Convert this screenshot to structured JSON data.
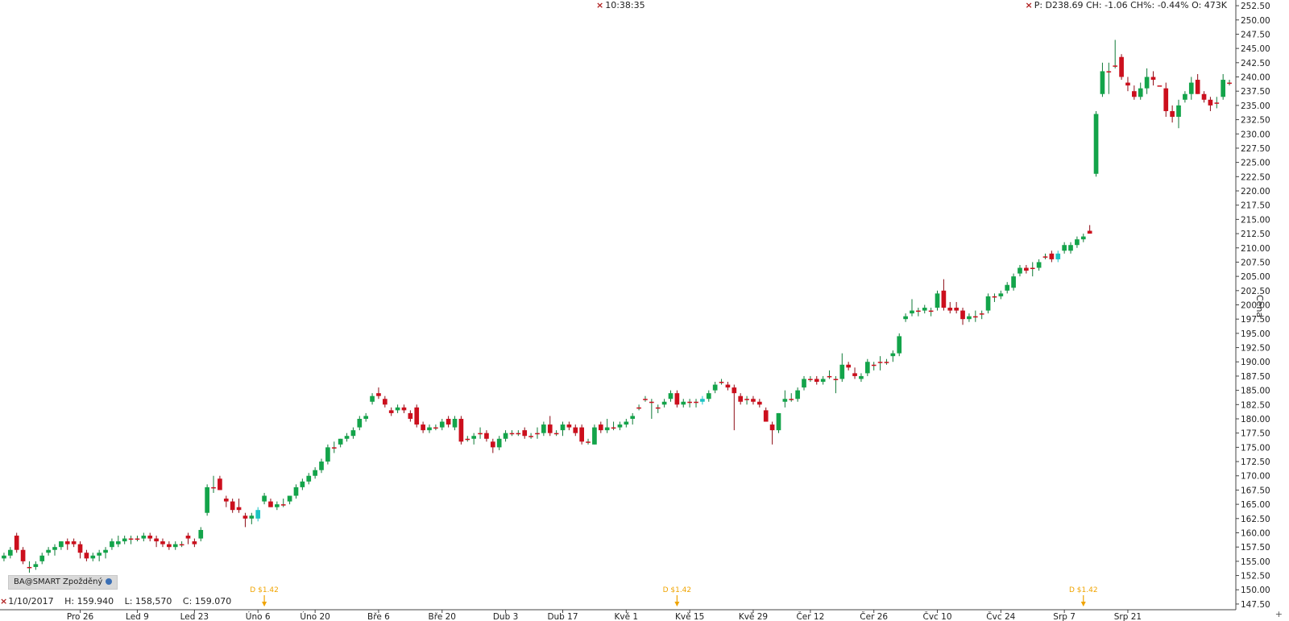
{
  "header": {
    "time": "10:38:35",
    "quote": "P: D238.69 CH: -1.06 CH%: -0.44% O: 473K"
  },
  "hover": {
    "date": "1/10/2017",
    "high": "H: 159.940",
    "low": "L: 158,570",
    "close": "C: 159.070"
  },
  "feed_badge": "BA@SMART Zpožděný",
  "corner_symbol": "+",
  "colors": {
    "up": "#13a44a",
    "down": "#cc0f1d",
    "doji": "#1cc3c3",
    "dividend": "#f0a400"
  },
  "chart_data": {
    "type": "candlestick",
    "ylabel": "Cena",
    "y_axis_side": "right",
    "ylim": [
      146.5,
      253.5
    ],
    "y_ticks": [
      147.5,
      150,
      152.5,
      155,
      157.5,
      160,
      162.5,
      165,
      167.5,
      170,
      172.5,
      175,
      177.5,
      180,
      182.5,
      185,
      187.5,
      190,
      192.5,
      195,
      197.5,
      200,
      202.5,
      205,
      207.5,
      210,
      212.5,
      215,
      217.5,
      220,
      222.5,
      225,
      227.5,
      230,
      232.5,
      235,
      237.5,
      240,
      242.5,
      245,
      247.5,
      250,
      252.5
    ],
    "x_ticks": [
      {
        "label": "Pro 26",
        "i": 12
      },
      {
        "label": "Led 9",
        "i": 21
      },
      {
        "label": "Led 23",
        "i": 30
      },
      {
        "label": "Úno 6",
        "i": 40
      },
      {
        "label": "Úno 20",
        "i": 49
      },
      {
        "label": "Bře 6",
        "i": 59
      },
      {
        "label": "Bře 20",
        "i": 69
      },
      {
        "label": "Dub 3",
        "i": 79
      },
      {
        "label": "Dub 17",
        "i": 88
      },
      {
        "label": "Kvě 1",
        "i": 98
      },
      {
        "label": "Kvě 15",
        "i": 108
      },
      {
        "label": "Kvě 29",
        "i": 118
      },
      {
        "label": "Čer 12",
        "i": 127
      },
      {
        "label": "Čer 26",
        "i": 137
      },
      {
        "label": "Čvc 10",
        "i": 147
      },
      {
        "label": "Čvc 24",
        "i": 157
      },
      {
        "label": "Srp 7",
        "i": 167
      },
      {
        "label": "Srp 21",
        "i": 177
      }
    ],
    "dividends": [
      {
        "label": "D $1.42",
        "i": 41
      },
      {
        "label": "D $1.42",
        "i": 106
      },
      {
        "label": "D $1.42",
        "i": 170
      }
    ],
    "ohlc": [
      [
        155.5,
        156.5,
        155,
        156
      ],
      [
        156,
        157.5,
        155.5,
        157
      ],
      [
        159.5,
        160,
        156.5,
        157
      ],
      [
        157,
        157.5,
        154.5,
        155
      ],
      [
        154,
        155,
        153,
        154
      ],
      [
        154,
        155,
        153.5,
        154.5
      ],
      [
        155,
        156.5,
        154.5,
        156
      ],
      [
        156.5,
        157.5,
        156,
        157
      ],
      [
        157,
        158,
        156,
        157.5
      ],
      [
        157.5,
        158.5,
        157,
        158.5
      ],
      [
        158.5,
        159,
        157,
        158
      ],
      [
        158.5,
        159,
        157.5,
        158
      ],
      [
        158,
        158.5,
        155.5,
        156.5
      ],
      [
        156.5,
        157,
        155,
        155.5
      ],
      [
        155.5,
        156.5,
        155,
        156
      ],
      [
        156,
        157,
        155,
        156.5
      ],
      [
        156.5,
        157.5,
        155.5,
        157
      ],
      [
        157.5,
        159,
        157,
        158.5
      ],
      [
        158,
        159.5,
        157.5,
        158.5
      ],
      [
        158.5,
        159.5,
        158,
        159
      ],
      [
        159,
        159.5,
        158,
        159
      ],
      [
        159,
        159.5,
        158.5,
        159
      ],
      [
        159,
        160,
        158.5,
        159.5
      ],
      [
        159.5,
        160,
        158.5,
        159
      ],
      [
        159,
        159.5,
        157.5,
        158.5
      ],
      [
        158.5,
        159,
        157.5,
        158
      ],
      [
        158,
        158.5,
        157,
        157.5
      ],
      [
        157.5,
        158.5,
        157,
        158
      ],
      [
        158,
        158.5,
        157.5,
        158
      ],
      [
        159.5,
        160,
        158,
        159
      ],
      [
        158.5,
        159,
        157.5,
        158
      ],
      [
        159,
        161,
        158.5,
        160.5
      ],
      [
        163.5,
        168.5,
        163,
        168
      ],
      [
        168,
        170,
        167,
        168
      ],
      [
        169.5,
        170,
        167.5,
        167.5
      ],
      [
        166,
        166.5,
        164.5,
        165.5
      ],
      [
        165.5,
        166,
        163.5,
        164
      ],
      [
        164.5,
        166,
        163.5,
        164
      ],
      [
        163,
        163.5,
        161,
        162.5
      ],
      [
        162.5,
        163.5,
        161.5,
        163
      ],
      [
        162.5,
        164.5,
        162,
        164
      ],
      [
        165.5,
        167,
        165,
        166.5
      ],
      [
        165.5,
        166,
        164.5,
        164.5
      ],
      [
        164.5,
        165.5,
        164,
        165
      ],
      [
        165,
        166,
        164.5,
        165
      ],
      [
        165.5,
        166.5,
        165,
        166.5
      ],
      [
        166.5,
        168.5,
        166,
        168
      ],
      [
        168,
        169.5,
        167.5,
        169
      ],
      [
        169,
        170.5,
        168.5,
        170
      ],
      [
        170,
        171.5,
        169.5,
        171
      ],
      [
        171,
        173,
        170.5,
        172.5
      ],
      [
        172.5,
        175.5,
        172,
        175
      ],
      [
        175,
        176,
        174,
        175
      ],
      [
        175.5,
        176.5,
        175,
        176.5
      ],
      [
        176.5,
        177.5,
        176,
        177
      ],
      [
        177,
        178.5,
        176.5,
        178
      ],
      [
        178.5,
        180.5,
        178,
        180
      ],
      [
        180,
        181,
        179.5,
        180.5
      ],
      [
        183,
        184.5,
        182.5,
        184
      ],
      [
        184.5,
        185.5,
        183.5,
        184
      ],
      [
        183.5,
        184,
        182,
        182.5
      ],
      [
        181.5,
        182,
        180.5,
        181
      ],
      [
        181.5,
        182.5,
        181,
        182
      ],
      [
        182,
        182.5,
        181,
        181.5
      ],
      [
        181,
        181.5,
        179.5,
        180
      ],
      [
        182,
        182.5,
        178.5,
        179
      ],
      [
        179,
        179.5,
        177.5,
        178
      ],
      [
        178,
        179,
        177.5,
        178.5
      ],
      [
        178.5,
        179,
        178,
        178.5
      ],
      [
        178.5,
        180,
        178,
        179.5
      ],
      [
        180,
        180.5,
        178.5,
        179
      ],
      [
        178.5,
        180.5,
        178,
        180
      ],
      [
        180,
        180.5,
        175.5,
        176
      ],
      [
        176.5,
        177,
        176,
        176.5
      ],
      [
        176.5,
        177.5,
        175.5,
        177
      ],
      [
        177.5,
        178.5,
        176.5,
        177.5
      ],
      [
        177.5,
        178,
        176,
        176.5
      ],
      [
        176,
        176.5,
        174,
        175
      ],
      [
        175,
        177,
        174.5,
        176.5
      ],
      [
        176.5,
        178,
        176,
        177.5
      ],
      [
        177.5,
        178,
        177,
        177.5
      ],
      [
        177.5,
        178,
        177,
        177.5
      ],
      [
        178,
        178.5,
        176.5,
        177
      ],
      [
        177,
        177.5,
        176.5,
        177
      ],
      [
        177.5,
        178.5,
        176.5,
        177.5
      ],
      [
        177.5,
        179.5,
        177,
        179
      ],
      [
        179,
        180.5,
        177,
        177.5
      ],
      [
        177.5,
        178,
        177,
        177.5
      ],
      [
        178,
        179.5,
        177,
        179
      ],
      [
        179,
        179.5,
        178,
        178.5
      ],
      [
        178.5,
        179,
        177,
        177.5
      ],
      [
        178.5,
        179,
        175.5,
        176
      ],
      [
        176,
        176.5,
        175.5,
        176
      ],
      [
        175.5,
        179,
        175.5,
        178.5
      ],
      [
        179,
        179.5,
        177.5,
        178
      ],
      [
        178,
        180,
        177.5,
        178.5
      ],
      [
        178.5,
        179.5,
        178,
        178.5
      ],
      [
        178.5,
        179.5,
        178,
        179
      ],
      [
        179,
        180,
        178.5,
        179.5
      ],
      [
        180,
        181,
        179,
        180.5
      ],
      [
        182,
        182.5,
        181.5,
        182
      ],
      [
        183.5,
        184,
        183,
        183.5
      ],
      [
        183,
        183.5,
        180,
        183
      ],
      [
        182,
        182.5,
        181,
        182
      ],
      [
        182.5,
        183.5,
        182,
        183
      ],
      [
        183.5,
        185,
        183,
        184.5
      ],
      [
        184.5,
        185,
        182,
        182.5
      ],
      [
        182.5,
        183.5,
        182,
        183
      ],
      [
        183,
        183.5,
        182,
        183
      ],
      [
        183,
        183.5,
        182,
        183
      ],
      [
        183,
        184,
        182.5,
        183.5
      ],
      [
        183.5,
        185,
        183,
        184.5
      ],
      [
        185,
        186.5,
        184.5,
        186
      ],
      [
        186.5,
        187,
        186,
        186.5
      ],
      [
        186,
        186.5,
        185,
        185.5
      ],
      [
        185.5,
        186,
        178,
        184.5
      ],
      [
        184,
        184.5,
        182.5,
        183
      ],
      [
        183.5,
        184,
        182.5,
        183.5
      ],
      [
        183.5,
        184,
        182.5,
        183
      ],
      [
        183,
        183.5,
        182,
        182.5
      ],
      [
        181.5,
        182,
        179.5,
        179.5
      ],
      [
        179,
        179.5,
        175.5,
        178
      ],
      [
        178,
        181,
        177.5,
        181
      ],
      [
        183,
        185,
        182,
        183.5
      ],
      [
        183.5,
        184.5,
        183,
        183.5
      ],
      [
        183.5,
        185.5,
        183,
        185
      ],
      [
        185.5,
        187.5,
        185,
        187
      ],
      [
        187,
        187.5,
        186.5,
        187
      ],
      [
        187,
        187.5,
        186,
        186.5
      ],
      [
        186.5,
        187.5,
        186,
        187
      ],
      [
        187.5,
        188.5,
        187,
        187.5
      ],
      [
        187,
        187.5,
        184.5,
        187
      ],
      [
        187,
        191.5,
        186.5,
        189.5
      ],
      [
        189.5,
        190,
        188.5,
        189
      ],
      [
        188,
        189,
        187,
        187.5
      ],
      [
        187,
        188,
        186.5,
        187.5
      ],
      [
        188,
        190.5,
        187.5,
        190
      ],
      [
        189.5,
        190,
        188.5,
        189.5
      ],
      [
        190,
        191,
        188.5,
        190
      ],
      [
        190,
        190.5,
        189.5,
        190
      ],
      [
        191,
        192,
        190,
        191.5
      ],
      [
        191.5,
        195,
        191,
        194.5
      ],
      [
        197.5,
        198.5,
        197,
        198
      ],
      [
        198.5,
        201,
        198,
        199
      ],
      [
        199,
        199.5,
        198,
        199
      ],
      [
        199,
        200,
        198.5,
        199.5
      ],
      [
        199,
        199.5,
        198,
        199
      ],
      [
        199.5,
        202.5,
        199,
        202
      ],
      [
        202.5,
        204.5,
        199,
        199.5
      ],
      [
        199.5,
        200.5,
        198.5,
        199
      ],
      [
        199.5,
        200.5,
        198.5,
        199
      ],
      [
        199,
        199.5,
        196.5,
        197.5
      ],
      [
        197.5,
        198.5,
        197,
        198
      ],
      [
        198,
        199,
        197,
        198
      ],
      [
        198.5,
        199,
        197.5,
        198.5
      ],
      [
        199,
        202,
        198.5,
        201.5
      ],
      [
        201.5,
        202,
        200.5,
        201.5
      ],
      [
        201.5,
        202.5,
        201,
        202
      ],
      [
        202.5,
        204,
        202,
        203.5
      ],
      [
        203,
        205.5,
        202.5,
        205
      ],
      [
        205.5,
        207,
        205,
        206.5
      ],
      [
        206.5,
        207,
        205.5,
        206
      ],
      [
        206.5,
        207.5,
        205,
        206.5
      ],
      [
        206.5,
        208,
        206,
        207.5
      ],
      [
        208.5,
        209,
        208,
        208.5
      ],
      [
        209,
        209.5,
        207.5,
        208
      ],
      [
        208,
        209.5,
        207.5,
        209
      ],
      [
        209.5,
        211,
        209,
        210.5
      ],
      [
        209.5,
        211,
        209,
        210.5
      ],
      [
        210.5,
        212,
        210,
        211.5
      ],
      [
        211.5,
        212.5,
        211,
        212
      ],
      [
        213,
        214,
        212.5,
        212.5
      ],
      [
        223,
        234,
        222.5,
        233.5
      ],
      [
        237,
        242.5,
        236.5,
        241
      ],
      [
        241,
        242.5,
        237,
        241
      ],
      [
        242,
        246.5,
        241.5,
        242
      ],
      [
        243.5,
        244,
        239.5,
        240
      ],
      [
        239,
        240,
        237.5,
        238.5
      ],
      [
        237.5,
        238.5,
        236,
        236.5
      ],
      [
        236.5,
        239,
        236,
        238
      ],
      [
        238,
        241.5,
        237,
        240
      ],
      [
        240,
        241,
        238.5,
        239.5
      ],
      [
        238.5,
        238.5,
        238.5,
        238.5
      ],
      [
        238,
        239,
        233,
        234
      ],
      [
        234,
        235,
        232,
        233
      ],
      [
        233,
        236,
        231,
        235
      ],
      [
        236,
        237.5,
        235.5,
        237
      ],
      [
        237,
        240,
        236,
        239
      ],
      [
        239.5,
        240.5,
        237,
        237
      ],
      [
        237,
        237.5,
        235.5,
        236
      ],
      [
        236,
        236.5,
        234,
        235
      ],
      [
        235.5,
        236.5,
        234.5,
        235.5
      ],
      [
        236.5,
        240.5,
        236,
        239.5
      ],
      [
        239,
        239.5,
        238.5,
        239
      ]
    ]
  }
}
